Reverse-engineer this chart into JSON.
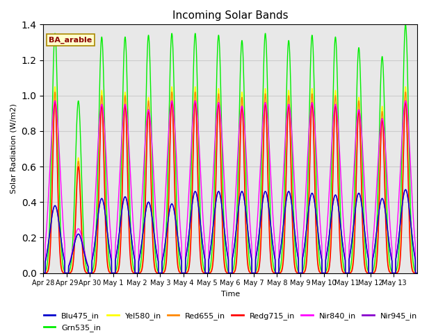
{
  "title": "Incoming Solar Bands",
  "xlabel": "Time",
  "ylabel": "Solar Radiation (W/m2)",
  "ylim": [
    0,
    1.4
  ],
  "annotation_text": "BA_arable",
  "legend_entries": [
    {
      "label": "Blu475_in",
      "color": "#0000cc"
    },
    {
      "label": "Grn535_in",
      "color": "#00ee00"
    },
    {
      "label": "Yel580_in",
      "color": "#ffff00"
    },
    {
      "label": "Red655_in",
      "color": "#ff8800"
    },
    {
      "label": "Redg715_in",
      "color": "#ff0000"
    },
    {
      "label": "Nir840_in",
      "color": "#ff00ff"
    },
    {
      "label": "Nir945_in",
      "color": "#8800cc"
    }
  ],
  "num_days": 16,
  "tick_labels": [
    "Apr 28",
    "Apr 29",
    "Apr 30",
    "May 1",
    "May 2",
    "May 3",
    "May 4",
    "May 5",
    "May 6",
    "May 7",
    "May 8",
    "May 9",
    "May 10",
    "May 11",
    "May 12",
    "May 13"
  ],
  "grid_color": "#cccccc",
  "bg_color": "#e8e8e8",
  "day_peaks_grn": [
    1.35,
    0.97,
    1.33,
    1.33,
    1.34,
    1.35,
    1.35,
    1.34,
    1.31,
    1.35,
    1.31,
    1.34,
    1.33,
    1.27,
    1.22,
    1.4
  ],
  "day_peaks_yel": [
    1.05,
    0.65,
    1.03,
    1.02,
    0.99,
    1.05,
    1.05,
    1.04,
    1.02,
    1.04,
    1.03,
    1.04,
    1.03,
    0.99,
    0.94,
    1.05
  ],
  "day_peaks_red": [
    1.02,
    0.63,
    1.0,
    1.0,
    0.97,
    1.02,
    1.02,
    1.01,
    0.99,
    1.01,
    1.0,
    1.01,
    1.0,
    0.97,
    0.91,
    1.02
  ],
  "day_peaks_redg": [
    0.97,
    0.6,
    0.95,
    0.95,
    0.92,
    0.97,
    0.97,
    0.96,
    0.94,
    0.96,
    0.95,
    0.96,
    0.95,
    0.92,
    0.87,
    0.97
  ],
  "day_peaks_nir840": [
    0.97,
    0.25,
    0.95,
    0.95,
    0.92,
    0.97,
    0.97,
    0.96,
    0.94,
    0.96,
    0.95,
    0.96,
    0.95,
    0.92,
    0.87,
    0.97
  ],
  "day_peaks_blu": [
    0.38,
    0.22,
    0.42,
    0.43,
    0.4,
    0.39,
    0.46,
    0.46,
    0.46,
    0.46,
    0.46,
    0.45,
    0.44,
    0.45,
    0.42,
    0.47
  ],
  "day_peaks_nir945": [
    0.38,
    0.22,
    0.42,
    0.43,
    0.4,
    0.39,
    0.46,
    0.46,
    0.46,
    0.46,
    0.46,
    0.45,
    0.44,
    0.45,
    0.42,
    0.47
  ]
}
